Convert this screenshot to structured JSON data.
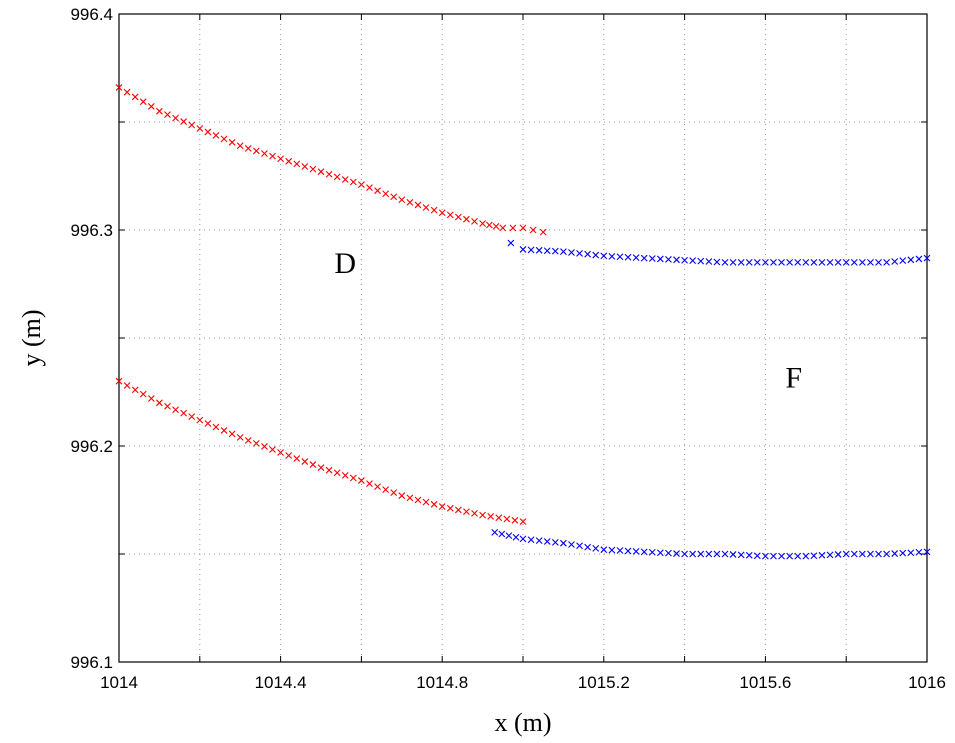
{
  "chart_data": {
    "type": "scatter",
    "xlabel": "x (m)",
    "ylabel": "y (m)",
    "xlim": [
      1014,
      1016
    ],
    "ylim": [
      996.1,
      996.4
    ],
    "xticks": [
      1014,
      1014.4,
      1014.8,
      1015.2,
      1015.6,
      1016
    ],
    "xtick_labels": [
      "1014",
      "1014.4",
      "1014.8",
      "1015.2",
      "1015.6",
      "1016"
    ],
    "yticks": [
      996.1,
      996.2,
      996.3,
      996.4
    ],
    "ytick_labels": [
      "996.1",
      "996.2",
      "996.3",
      "996.4"
    ],
    "grid": true,
    "marker": "x",
    "annotations": [
      {
        "text": "D",
        "x": 1014.56,
        "y": 996.28
      },
      {
        "text": "F",
        "x": 1015.67,
        "y": 996.227
      }
    ],
    "series": [
      {
        "color": "#ff0000",
        "points": [
          [
            1014.0,
            996.366
          ],
          [
            1014.1,
            996.355
          ],
          [
            1014.2,
            996.347
          ],
          [
            1014.3,
            996.339
          ],
          [
            1014.4,
            996.333
          ],
          [
            1014.5,
            996.327
          ],
          [
            1014.6,
            996.321
          ],
          [
            1014.7,
            996.314
          ],
          [
            1014.8,
            996.308
          ],
          [
            1014.9,
            996.303
          ],
          [
            1014.95,
            996.301
          ],
          [
            1015.0,
            996.301
          ],
          [
            1015.05,
            996.299
          ]
        ]
      },
      {
        "color": "#ff0000",
        "points": [
          [
            1014.0,
            996.23
          ],
          [
            1014.1,
            996.22
          ],
          [
            1014.2,
            996.212
          ],
          [
            1014.3,
            996.204
          ],
          [
            1014.4,
            996.197
          ],
          [
            1014.5,
            996.19
          ],
          [
            1014.6,
            996.184
          ],
          [
            1014.7,
            996.177
          ],
          [
            1014.8,
            996.172
          ],
          [
            1014.9,
            996.168
          ],
          [
            1015.0,
            996.165
          ]
        ]
      },
      {
        "color": "#0000ff",
        "points": [
          [
            1014.97,
            996.294
          ],
          [
            1015.0,
            996.291
          ],
          [
            1015.1,
            996.29
          ],
          [
            1015.2,
            996.288
          ],
          [
            1015.3,
            996.287
          ],
          [
            1015.4,
            996.286
          ],
          [
            1015.5,
            996.285
          ],
          [
            1015.6,
            996.285
          ],
          [
            1015.7,
            996.285
          ],
          [
            1015.8,
            996.285
          ],
          [
            1015.9,
            996.285
          ],
          [
            1016.0,
            996.287
          ]
        ]
      },
      {
        "color": "#0000ff",
        "points": [
          [
            1014.93,
            996.16
          ],
          [
            1015.0,
            996.157
          ],
          [
            1015.1,
            996.155
          ],
          [
            1015.2,
            996.152
          ],
          [
            1015.3,
            996.151
          ],
          [
            1015.4,
            996.15
          ],
          [
            1015.5,
            996.15
          ],
          [
            1015.6,
            996.149
          ],
          [
            1015.7,
            996.149
          ],
          [
            1015.8,
            996.15
          ],
          [
            1015.9,
            996.15
          ],
          [
            1016.0,
            996.151
          ]
        ]
      }
    ]
  }
}
